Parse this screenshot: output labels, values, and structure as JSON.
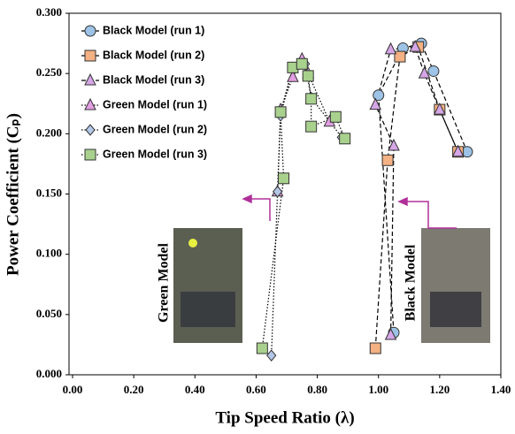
{
  "chart_data": {
    "type": "line",
    "xlabel": "Tip Speed Ratio (λ)",
    "ylabel": "Power Coefficient (Cₚ)",
    "xlim": [
      0,
      1.4
    ],
    "ylim": [
      0,
      0.3
    ],
    "xticks": [
      {
        "value": 0,
        "label": "0.00"
      },
      {
        "value": 0.2,
        "label": "0.20"
      },
      {
        "value": 0.4,
        "label": "0.40"
      },
      {
        "value": 0.6,
        "label": "0.60"
      },
      {
        "value": 0.8,
        "label": "0.80"
      },
      {
        "value": 1.0,
        "label": "1.00"
      },
      {
        "value": 1.2,
        "label": "1.20"
      },
      {
        "value": 1.4,
        "label": "1.40"
      }
    ],
    "yticks": [
      {
        "value": 0,
        "label": "0.000"
      },
      {
        "value": 0.05,
        "label": "0.050"
      },
      {
        "value": 0.1,
        "label": "0.100"
      },
      {
        "value": 0.15,
        "label": "0.150"
      },
      {
        "value": 0.2,
        "label": "0.200"
      },
      {
        "value": 0.25,
        "label": "0.250"
      },
      {
        "value": 0.3,
        "label": "0.300"
      }
    ],
    "legend": "upper left",
    "annotations": [
      "Green Model",
      "Black Model"
    ],
    "series": [
      {
        "name": "Black Model (run 1)",
        "color": "#9dc3e6",
        "marker": "circle",
        "linestyle": "dashed",
        "x": [
          1.05,
          1.0,
          1.08,
          1.14,
          1.18,
          1.29
        ],
        "values": [
          0.035,
          0.232,
          0.271,
          0.275,
          0.252,
          0.185
        ]
      },
      {
        "name": "Black Model (run 2)",
        "color": "#f4b183",
        "marker": "square",
        "linestyle": "dashed",
        "x": [
          0.99,
          1.03,
          1.07,
          1.13,
          1.2,
          1.26
        ],
        "values": [
          0.022,
          0.178,
          0.264,
          0.272,
          0.22,
          0.185
        ]
      },
      {
        "name": "Black Model (run 3)",
        "color": "#d5a6e6",
        "marker": "triangle",
        "linestyle": "dashed",
        "x": [
          1.04,
          1.05,
          0.99,
          1.04,
          1.12,
          1.15,
          1.2,
          1.26
        ],
        "values": [
          0.033,
          0.19,
          0.224,
          0.27,
          0.272,
          0.25,
          0.22,
          0.185
        ]
      },
      {
        "name": "Green Model (run 1)",
        "color": "#e39fe3",
        "marker": "triangle",
        "linestyle": "dotted",
        "x": [
          0.67,
          0.68,
          0.72,
          0.75,
          0.77,
          0.84
        ],
        "values": [
          0.152,
          0.22,
          0.247,
          0.262,
          0.25,
          0.21
        ]
      },
      {
        "name": "Green Model (run 2)",
        "color": "#b4c7e7",
        "marker": "diamond",
        "linestyle": "dotted",
        "x": [
          0.65,
          0.67,
          0.68,
          0.72,
          0.76,
          0.78,
          0.88
        ],
        "values": [
          0.016,
          0.152,
          0.215,
          0.255,
          0.258,
          0.23,
          0.197
        ]
      },
      {
        "name": "Green Model (run 3)",
        "color": "#a9d18e",
        "marker": "square",
        "linestyle": "dotted",
        "x": [
          0.62,
          0.69,
          0.68,
          0.72,
          0.75,
          0.77,
          0.78,
          0.78,
          0.86,
          0.89
        ],
        "values": [
          0.022,
          0.163,
          0.218,
          0.255,
          0.258,
          0.248,
          0.229,
          0.206,
          0.214,
          0.196
        ]
      }
    ]
  }
}
